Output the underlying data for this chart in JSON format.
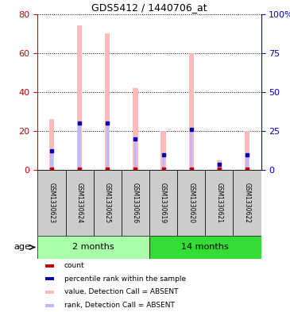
{
  "title": "GDS5412 / 1440706_at",
  "samples": [
    "GSM1330623",
    "GSM1330624",
    "GSM1330625",
    "GSM1330626",
    "GSM1330619",
    "GSM1330620",
    "GSM1330621",
    "GSM1330622"
  ],
  "groups": [
    {
      "label": "2 months",
      "indices": [
        0,
        1,
        2,
        3
      ],
      "color": "#AAFFAA"
    },
    {
      "label": "14 months",
      "indices": [
        4,
        5,
        6,
        7
      ],
      "color": "#33DD33"
    }
  ],
  "value_absent": [
    26,
    74,
    70,
    42,
    20,
    60,
    5,
    20
  ],
  "rank_absent": [
    10,
    24,
    24,
    16,
    8,
    21,
    3,
    8
  ],
  "ylim_left": [
    0,
    80
  ],
  "ylim_right": [
    0,
    100
  ],
  "yticks_left": [
    0,
    20,
    40,
    60,
    80
  ],
  "yticks_right": [
    0,
    25,
    50,
    75,
    100
  ],
  "ytick_labels_right": [
    "0",
    "25",
    "50",
    "75",
    "100%"
  ],
  "left_color": "#CC0000",
  "right_color": "#0000BB",
  "absent_value_color": "#FFBBBB",
  "absent_rank_color": "#BBBBFF",
  "count_color": "#CC0000",
  "percentile_color": "#0000BB",
  "bg_color": "#CCCCCC",
  "legend_items": [
    {
      "color": "#CC0000",
      "label": "count"
    },
    {
      "color": "#0000BB",
      "label": "percentile rank within the sample"
    },
    {
      "color": "#FFBBBB",
      "label": "value, Detection Call = ABSENT"
    },
    {
      "color": "#BBBBFF",
      "label": "rank, Detection Call = ABSENT"
    }
  ]
}
